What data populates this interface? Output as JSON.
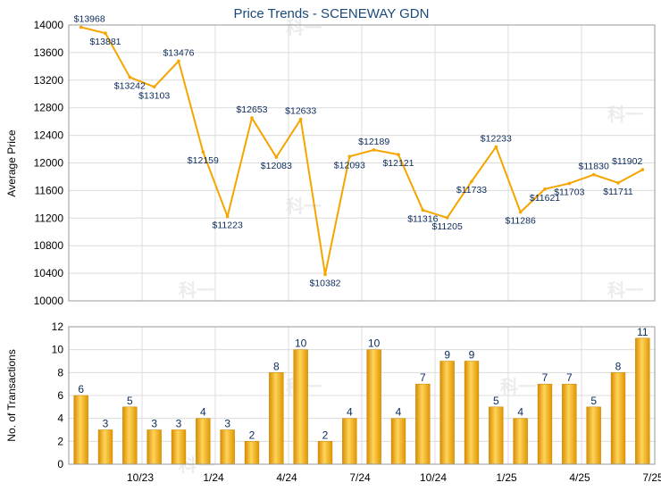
{
  "chart_data": [
    {
      "type": "line",
      "title": "Price Trends - SCENEWAY GDN",
      "ylabel": "Average Price",
      "ylim": [
        10000,
        14000
      ],
      "yticks": [
        10000,
        10400,
        10800,
        11200,
        11600,
        12000,
        12400,
        12800,
        13200,
        13600,
        14000
      ],
      "series": [
        {
          "values": [
            13968,
            13881,
            13242,
            13103,
            13476,
            12159,
            11223,
            12653,
            12083,
            12633,
            10382,
            12093,
            12189,
            12121,
            11316,
            11205,
            11733,
            12233,
            11286,
            11621,
            11703,
            11830,
            11711,
            11902
          ],
          "point_labels": [
            "$13968",
            "$13881",
            "$13242",
            "$13103",
            "$13476",
            "$12159",
            "$11223",
            "$12653",
            "$12083",
            "$12633",
            "$10382",
            "$12093",
            "$12189",
            "$12121",
            "$11316",
            "$11205",
            "$11733",
            "$12233",
            "$11286",
            "$11621",
            "$11703",
            "$11830",
            "$11711",
            "$11902"
          ]
        }
      ],
      "grid": true,
      "line_color": "#f5a500"
    },
    {
      "type": "bar",
      "ylabel": "No. of Transactions",
      "ylim": [
        0,
        12
      ],
      "yticks": [
        0,
        2,
        4,
        6,
        8,
        10,
        12
      ],
      "x_tick_labels": [
        "10/23",
        "1/24",
        "4/24",
        "7/24",
        "10/24",
        "1/25",
        "4/25",
        "7/25"
      ],
      "series": [
        {
          "values": [
            6,
            3,
            5,
            3,
            3,
            4,
            3,
            2,
            8,
            10,
            2,
            4,
            10,
            4,
            7,
            9,
            9,
            5,
            4,
            7,
            7,
            5,
            8,
            11
          ]
        }
      ],
      "grid": true,
      "bar_color": "#f0a800"
    }
  ],
  "watermark": "科一"
}
